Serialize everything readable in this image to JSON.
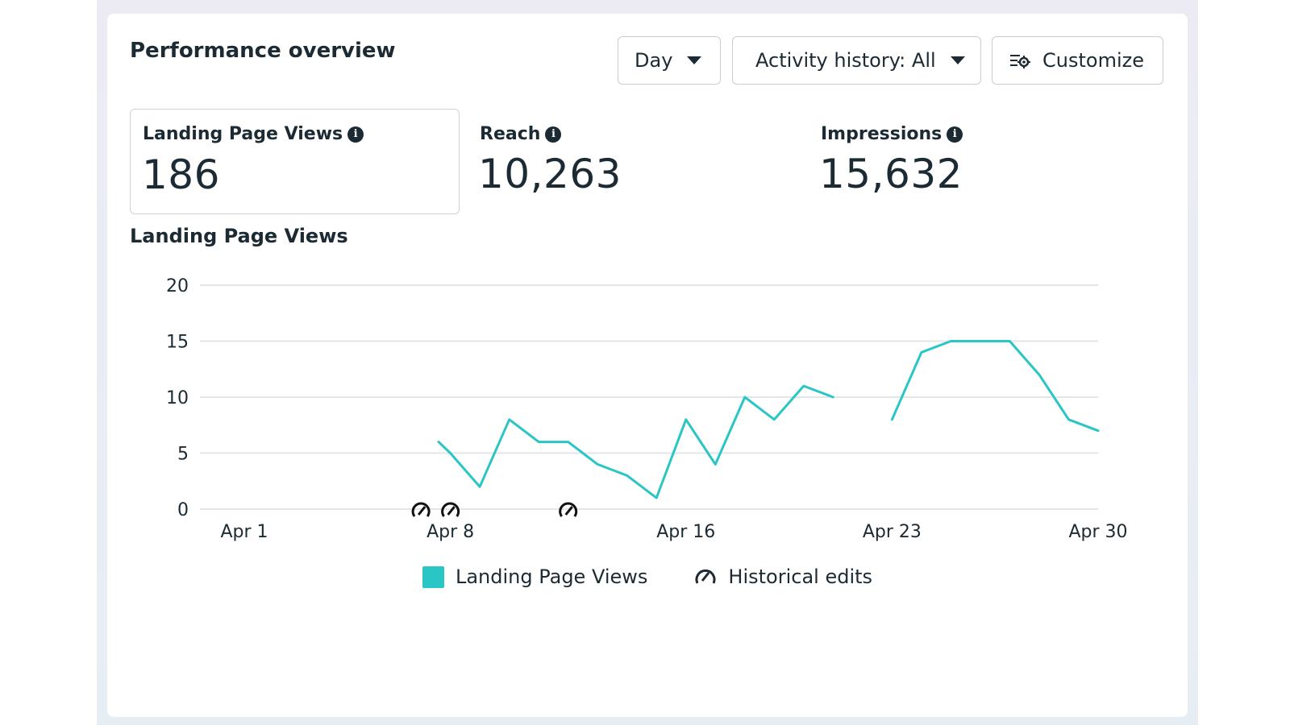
{
  "header": {
    "title": "Performance overview",
    "day_button": "Day",
    "activity_button": "Activity history: All",
    "customize_button": "Customize"
  },
  "metrics": [
    {
      "label": "Landing Page Views",
      "value": "186",
      "selected": true
    },
    {
      "label": "Reach",
      "value": "10,263",
      "selected": false
    },
    {
      "label": "Impressions",
      "value": "15,632",
      "selected": false
    }
  ],
  "chart_title": "Landing Page Views",
  "legend": {
    "series_label": "Landing Page Views",
    "edits_label": "Historical edits"
  },
  "colors": {
    "series": "#2ac6c6",
    "gridline": "#e3e6e8",
    "text": "#1c2b33"
  },
  "chart_data": {
    "type": "line",
    "title": "",
    "xlabel": "",
    "ylabel": "",
    "ylim": [
      0,
      20
    ],
    "y_ticks": [
      0,
      5,
      10,
      15,
      20
    ],
    "x_tick_labels": [
      "Apr 1",
      "Apr 8",
      "Apr 16",
      "Apr 23",
      "Apr 30"
    ],
    "x_tick_days": [
      1,
      8,
      16,
      23,
      30
    ],
    "grid": true,
    "legend_position": "bottom",
    "series": [
      {
        "name": "Landing Page Views",
        "x": [
          7.6,
          8,
          9,
          10,
          11,
          12,
          13,
          14,
          15,
          16,
          17,
          18,
          19,
          20,
          21,
          23,
          24,
          25,
          26,
          27,
          28,
          29,
          30
        ],
        "y": [
          6,
          5,
          2,
          8,
          6,
          6,
          4,
          3,
          1,
          8,
          4,
          10,
          8,
          11,
          10,
          8,
          14,
          15,
          15,
          15,
          12,
          8,
          7
        ],
        "segments": [
          [
            0,
            14
          ],
          [
            15,
            22
          ]
        ]
      }
    ],
    "historical_edits_x": [
      7,
      8,
      12
    ]
  }
}
